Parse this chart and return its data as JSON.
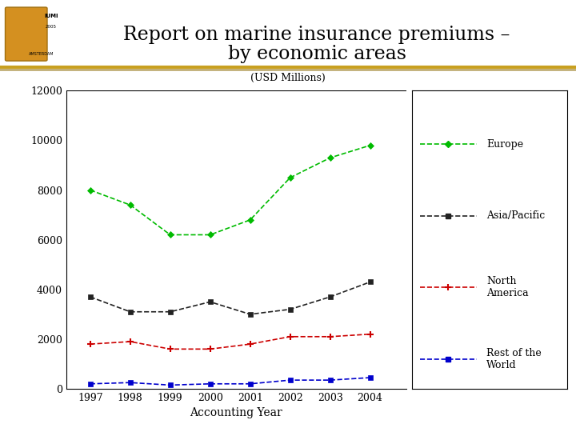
{
  "title_line1": "Report on marine insurance premiums –",
  "title_line2": "by economic areas",
  "subtitle": "(USD Millions)",
  "xlabel": "Accounting Year",
  "years": [
    1997,
    1998,
    1999,
    2000,
    2001,
    2002,
    2003,
    2004
  ],
  "europe": [
    8000,
    7400,
    6200,
    6200,
    6800,
    8500,
    9300,
    9800
  ],
  "asia_pacific": [
    3700,
    3100,
    3100,
    3500,
    3000,
    3200,
    3700,
    4300
  ],
  "north_america": [
    1800,
    1900,
    1600,
    1600,
    1800,
    2100,
    2100,
    2200
  ],
  "rest_of_world": [
    200,
    250,
    150,
    200,
    200,
    350,
    350,
    450
  ],
  "ylim": [
    0,
    12000
  ],
  "yticks": [
    0,
    2000,
    4000,
    6000,
    8000,
    10000,
    12000
  ],
  "color_europe": "#00bb00",
  "color_asia": "#222222",
  "color_north": "#cc0000",
  "color_rest": "#0000cc",
  "bg_color": "#ffffff",
  "title_fontsize": 17,
  "subtitle_fontsize": 9,
  "axis_fontsize": 9,
  "legend_fontsize": 9,
  "tick_fontsize": 9
}
